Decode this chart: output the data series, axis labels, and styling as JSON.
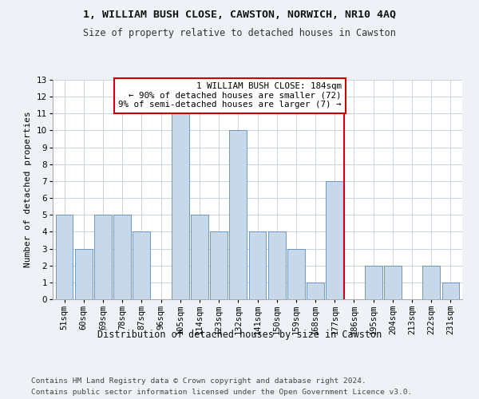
{
  "title1": "1, WILLIAM BUSH CLOSE, CAWSTON, NORWICH, NR10 4AQ",
  "title2": "Size of property relative to detached houses in Cawston",
  "xlabel": "Distribution of detached houses by size in Cawston",
  "ylabel": "Number of detached properties",
  "categories": [
    "51sqm",
    "60sqm",
    "69sqm",
    "78sqm",
    "87sqm",
    "96sqm",
    "105sqm",
    "114sqm",
    "123sqm",
    "132sqm",
    "141sqm",
    "150sqm",
    "159sqm",
    "168sqm",
    "177sqm",
    "186sqm",
    "195sqm",
    "204sqm",
    "213sqm",
    "222sqm",
    "231sqm"
  ],
  "values": [
    5,
    3,
    5,
    5,
    4,
    0,
    11,
    5,
    4,
    10,
    4,
    4,
    3,
    1,
    7,
    0,
    2,
    2,
    0,
    2,
    1
  ],
  "bar_color": "#c8d8eb",
  "bar_edge_color": "#5b8db8",
  "annotation_line1": "  1 WILLIAM BUSH CLOSE: 184sqm",
  "annotation_line2": "← 90% of detached houses are smaller (72)",
  "annotation_line3": "9% of semi-detached houses are larger (7) →",
  "annotation_box_color": "#ffffff",
  "annotation_box_edge_color": "#cc0000",
  "vline_color": "#cc0000",
  "vline_index": 15,
  "ylim": [
    0,
    13
  ],
  "yticks": [
    0,
    1,
    2,
    3,
    4,
    5,
    6,
    7,
    8,
    9,
    10,
    11,
    12,
    13
  ],
  "footer1": "Contains HM Land Registry data © Crown copyright and database right 2024.",
  "footer2": "Contains public sector information licensed under the Open Government Licence v3.0.",
  "background_color": "#eef2f7",
  "plot_bg_color": "#ffffff",
  "grid_color": "#c8d4e0",
  "title1_fontsize": 9.5,
  "title2_fontsize": 8.5,
  "xlabel_fontsize": 8.5,
  "ylabel_fontsize": 8,
  "tick_fontsize": 7.5,
  "annotation_fontsize": 7.8,
  "footer_fontsize": 6.8
}
